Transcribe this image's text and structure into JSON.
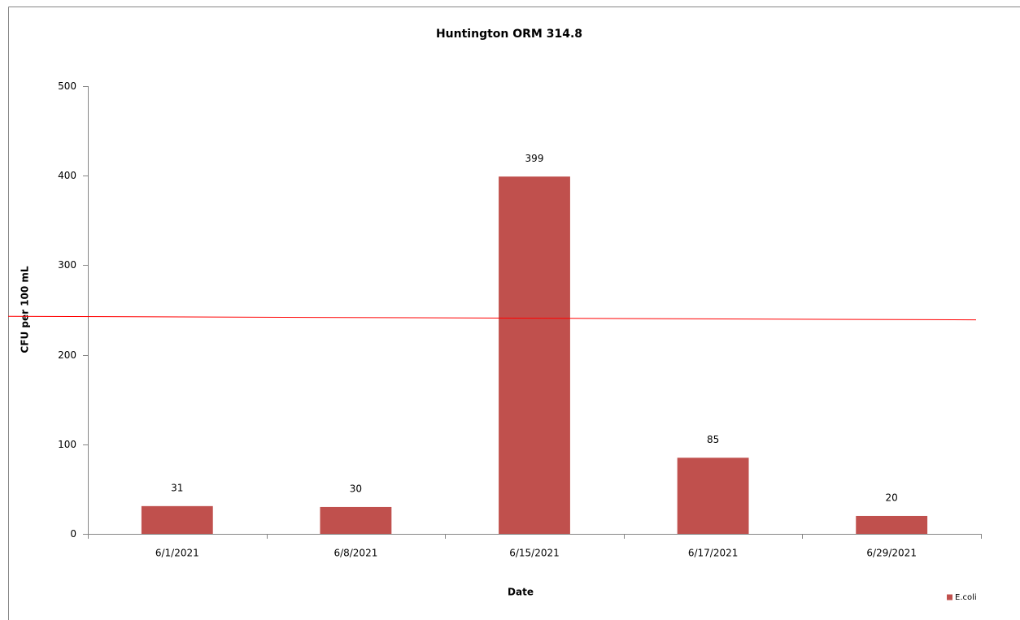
{
  "chart_data": {
    "type": "bar",
    "title": "Huntington ORM 314.8",
    "x_label": "Date",
    "y_label": "CFU per 100 mL",
    "categories": [
      "6/1/2021",
      "6/8/2021",
      "6/15/2021",
      "6/17/2021",
      "6/29/2021"
    ],
    "series": [
      {
        "name": "E.coli",
        "color": "#c0504d",
        "values": [
          31,
          30,
          399,
          85,
          20
        ]
      }
    ],
    "ylim": [
      0,
      500
    ],
    "yticks": [
      0,
      100,
      200,
      300,
      400,
      500
    ],
    "grid": false,
    "legend": "bottom-right",
    "reference_line": {
      "values": [
        243,
        239
      ],
      "color": "#ff0000"
    }
  }
}
